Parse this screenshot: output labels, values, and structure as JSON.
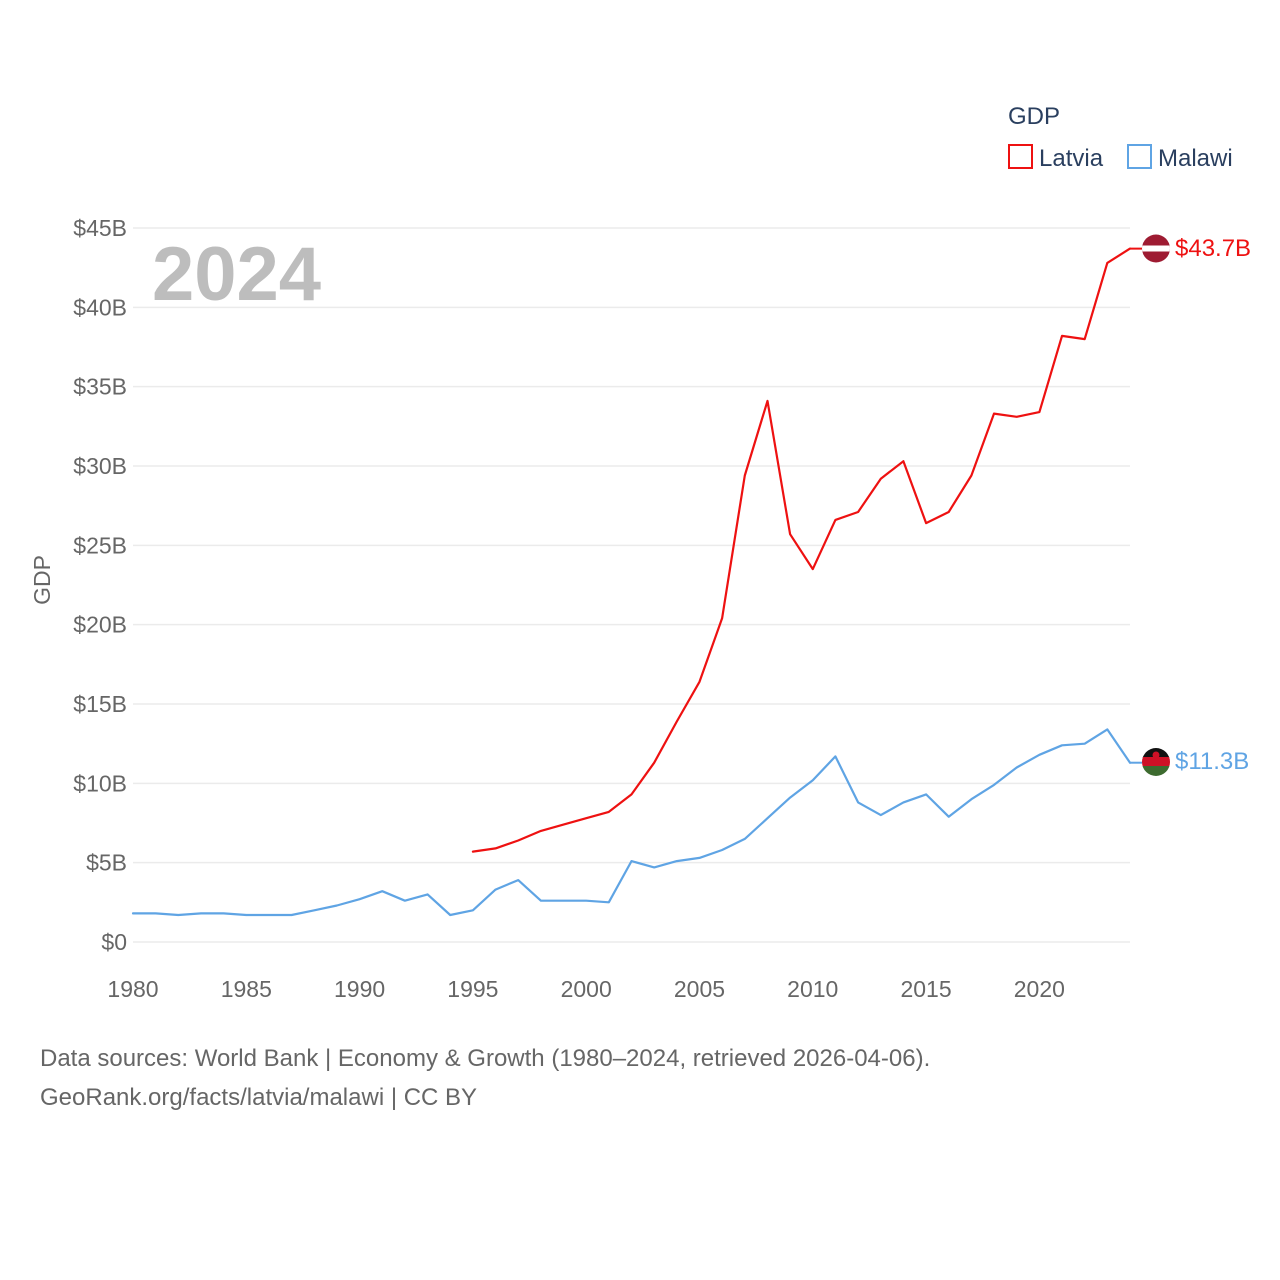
{
  "chart_data": {
    "type": "line",
    "year_label": "2024",
    "ylabel": "GDP",
    "xlim": [
      1980,
      2024
    ],
    "ylim": [
      0,
      45
    ],
    "x_ticks": [
      1980,
      1985,
      1990,
      1995,
      2000,
      2005,
      2010,
      2015,
      2020
    ],
    "y_ticks": [
      {
        "value": 0,
        "label": "$0"
      },
      {
        "value": 5,
        "label": "$5B"
      },
      {
        "value": 10,
        "label": "$10B"
      },
      {
        "value": 15,
        "label": "$15B"
      },
      {
        "value": 20,
        "label": "$20B"
      },
      {
        "value": 25,
        "label": "$25B"
      },
      {
        "value": 30,
        "label": "$30B"
      },
      {
        "value": 35,
        "label": "$35B"
      },
      {
        "value": 40,
        "label": "$40B"
      },
      {
        "value": 45,
        "label": "$45B"
      }
    ],
    "grid": true,
    "legend": {
      "title": "GDP",
      "placement": "top-right"
    },
    "series": [
      {
        "name": "Latvia",
        "color": "#ee1111",
        "icon": "latvia-flag-icon",
        "end_label": "$43.7B",
        "x": [
          1995,
          1996,
          1997,
          1998,
          1999,
          2000,
          2001,
          2002,
          2003,
          2004,
          2005,
          2006,
          2007,
          2008,
          2009,
          2010,
          2011,
          2012,
          2013,
          2014,
          2015,
          2016,
          2017,
          2018,
          2019,
          2020,
          2021,
          2022,
          2023,
          2024
        ],
        "values": [
          5.7,
          5.9,
          6.4,
          7.0,
          7.4,
          7.8,
          8.2,
          9.3,
          11.3,
          13.9,
          16.4,
          20.4,
          29.4,
          34.1,
          25.7,
          23.5,
          26.6,
          27.1,
          29.2,
          30.3,
          26.4,
          27.1,
          29.4,
          33.3,
          33.1,
          33.4,
          38.2,
          38.0,
          42.8,
          43.7
        ]
      },
      {
        "name": "Malawi",
        "color": "#5fa4e4",
        "icon": "malawi-flag-icon",
        "end_label": "$11.3B",
        "x": [
          1980,
          1981,
          1982,
          1983,
          1984,
          1985,
          1986,
          1987,
          1988,
          1989,
          1990,
          1991,
          1992,
          1993,
          1994,
          1995,
          1996,
          1997,
          1998,
          1999,
          2000,
          2001,
          2002,
          2003,
          2004,
          2005,
          2006,
          2007,
          2008,
          2009,
          2010,
          2011,
          2012,
          2013,
          2014,
          2015,
          2016,
          2017,
          2018,
          2019,
          2020,
          2021,
          2022,
          2023,
          2024
        ],
        "values": [
          1.8,
          1.8,
          1.7,
          1.8,
          1.8,
          1.7,
          1.7,
          1.7,
          2.0,
          2.3,
          2.7,
          3.2,
          2.6,
          3.0,
          1.7,
          2.0,
          3.3,
          3.9,
          2.6,
          2.6,
          2.6,
          2.5,
          5.1,
          4.7,
          5.1,
          5.3,
          5.8,
          6.5,
          7.8,
          9.1,
          10.2,
          11.7,
          8.8,
          8.0,
          8.8,
          9.3,
          7.9,
          9.0,
          9.9,
          11.0,
          11.8,
          12.4,
          12.5,
          13.4,
          11.3
        ]
      }
    ]
  },
  "footer": {
    "line1": "Data sources: World Bank | Economy & Growth (1980–2024, retrieved 2026-04-06).",
    "line2": "GeoRank.org/facts/latvia/malawi | CC BY"
  }
}
